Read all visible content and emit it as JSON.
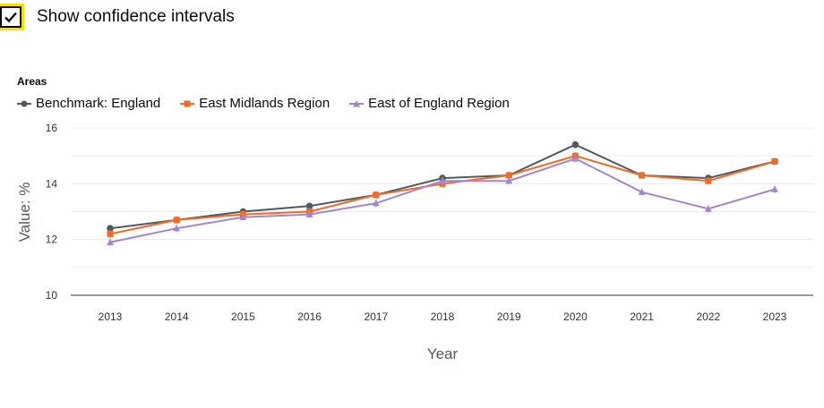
{
  "ci_toggle": {
    "label": "Show confidence intervals",
    "checked": true
  },
  "legend": {
    "title": "Areas"
  },
  "chart_data": {
    "type": "line",
    "xlabel": "Year",
    "ylabel": "Value: %",
    "ylim": [
      10,
      16
    ],
    "y_ticks": [
      "10",
      "12",
      "14",
      "16"
    ],
    "categories": [
      "2013",
      "2014",
      "2015",
      "2016",
      "2017",
      "2018",
      "2019",
      "2020",
      "2021",
      "2022",
      "2023"
    ],
    "grid": true,
    "legend_position": "top-left",
    "series": [
      {
        "name": "Benchmark: England",
        "color": "#505a5f",
        "marker": "circle",
        "values": [
          12.4,
          12.7,
          13.0,
          13.2,
          13.6,
          14.2,
          14.3,
          15.4,
          14.3,
          14.2,
          14.8
        ]
      },
      {
        "name": "East Midlands Region",
        "color": "#f46a25",
        "marker": "square",
        "values": [
          12.2,
          12.7,
          12.9,
          13.0,
          13.6,
          14.0,
          14.3,
          15.0,
          14.3,
          14.1,
          14.8
        ]
      },
      {
        "name": "East of England Region",
        "color": "#a285d1",
        "marker": "triangle",
        "values": [
          11.9,
          12.4,
          12.8,
          12.9,
          13.3,
          14.1,
          14.1,
          14.9,
          13.7,
          13.1,
          13.8
        ]
      }
    ]
  }
}
